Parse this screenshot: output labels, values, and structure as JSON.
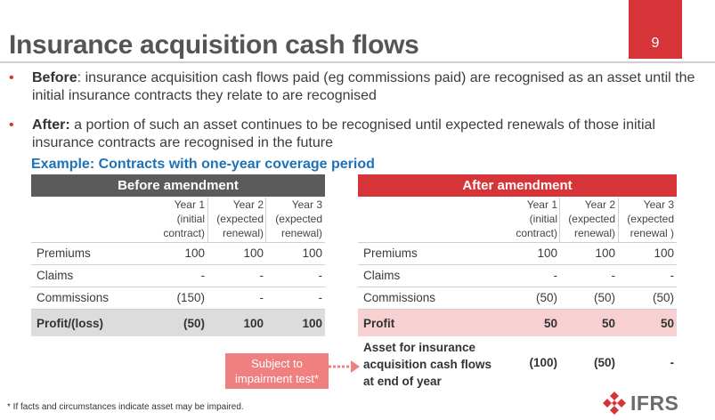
{
  "title": "Insurance acquisition cash flows",
  "page_number": "9",
  "bullets": [
    {
      "lead": "Before",
      "text": ": insurance acquisition cash flows paid (eg commissions paid) are recognised as an asset until the initial insurance contracts they relate to are recognised"
    },
    {
      "lead": "After:",
      "text": " a portion of such an asset continues to be recognised until expected renewals of those initial insurance contracts are recognised in the future"
    }
  ],
  "example_heading": "Example: Contracts with one-year coverage period",
  "before_table": {
    "header": "Before amendment",
    "columns": [
      [
        "Year 1",
        "(initial",
        "contract)"
      ],
      [
        "Year 2",
        "(expected",
        "renewal)"
      ],
      [
        "Year 3",
        "(expected",
        "renewal)"
      ]
    ],
    "rows": [
      {
        "label": "Premiums",
        "values": [
          "100",
          "100",
          "100"
        ]
      },
      {
        "label": "Claims",
        "values": [
          "-",
          "-",
          "-"
        ]
      },
      {
        "label": "Commissions",
        "values": [
          "(150)",
          "-",
          "-"
        ]
      },
      {
        "label": "Profit/(loss)",
        "values": [
          "(50)",
          "100",
          "100"
        ]
      }
    ]
  },
  "after_table": {
    "header": "After amendment",
    "columns": [
      [
        "Year 1",
        "(initial",
        "contract)"
      ],
      [
        "Year 2",
        "(expected",
        "renewal)"
      ],
      [
        "Year 3",
        "(expected",
        "renewal )"
      ]
    ],
    "rows": [
      {
        "label": "Premiums",
        "values": [
          "100",
          "100",
          "100"
        ]
      },
      {
        "label": "Claims",
        "values": [
          "-",
          "-",
          "-"
        ]
      },
      {
        "label": "Commissions",
        "values": [
          "(50)",
          "(50)",
          "(50)"
        ]
      },
      {
        "label": "Profit",
        "values": [
          "50",
          "50",
          "50"
        ]
      },
      {
        "label_lines": [
          "Asset for insurance",
          "acquisition cash flows",
          "at end of year"
        ],
        "values": [
          "(100)",
          "(50)",
          "-"
        ]
      }
    ]
  },
  "callout": [
    "Subject to",
    "impairment test*"
  ],
  "footnote": "* If facts and circumstances indicate asset may be impaired.",
  "logo_text": "IFRS",
  "colors": {
    "brand_red": "#d7343a",
    "header_grey": "#5b5b5b",
    "example_blue": "#1d72b8",
    "callout_red": "#f08080"
  }
}
